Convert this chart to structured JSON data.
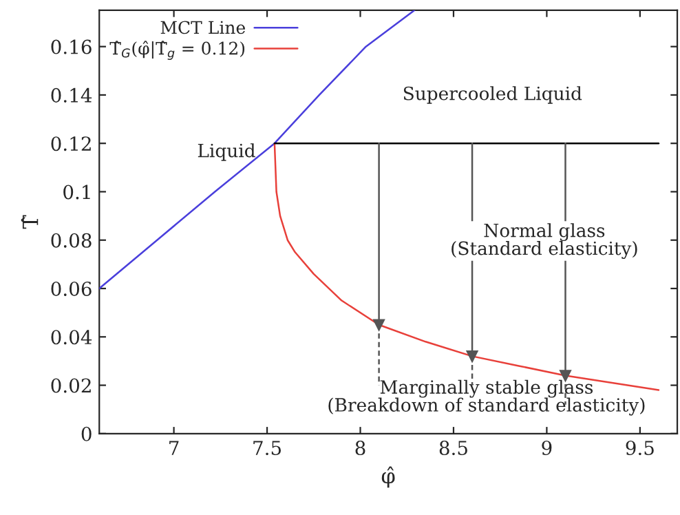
{
  "chart_data": {
    "type": "line",
    "xlabel": "φ̂",
    "ylabel": "T̂",
    "xlim": [
      6.6,
      9.7
    ],
    "ylim": [
      0,
      0.175
    ],
    "xticks": [
      7,
      7.5,
      8,
      8.5,
      9,
      9.5
    ],
    "yticks": [
      0,
      0.02,
      0.04,
      0.06,
      0.08,
      0.1,
      0.12,
      0.14,
      0.16
    ],
    "grid": false,
    "legend": "top left",
    "marker": "none",
    "series": [
      {
        "name": "MCT Line",
        "color": "#4a3fdc",
        "x": [
          6.6,
          6.91,
          7.22,
          7.54,
          7.78,
          8.03,
          8.29
        ],
        "values": [
          0.06,
          0.08,
          0.1,
          0.12,
          0.14,
          0.16,
          0.175
        ]
      },
      {
        "name": "T̂$_{G}$(φ̂|T̂$_{g}$ = 0.12)",
        "color": "#e8403a",
        "x": [
          7.54,
          7.55,
          7.57,
          7.61,
          7.65,
          7.75,
          7.9,
          8.1,
          8.35,
          8.6,
          8.85,
          9.1,
          9.35,
          9.6
        ],
        "values": [
          0.12,
          0.1,
          0.09,
          0.08,
          0.075,
          0.066,
          0.055,
          0.045,
          0.038,
          0.032,
          0.028,
          0.024,
          0.021,
          0.018
        ]
      },
      {
        "color": "#000000",
        "x": [
          7.54,
          9.6
        ],
        "values": [
          0.12,
          0.12
        ]
      },
      {
        "color": "#555555",
        "x": [
          8.1,
          8.1
        ],
        "values": [
          0.12,
          0.045
        ],
        "marker": "triangle"
      },
      {
        "color": "#555555",
        "x": [
          8.6,
          8.6
        ],
        "values": [
          0.12,
          0.032
        ],
        "marker": "triangle"
      },
      {
        "color": "#555555",
        "x": [
          9.1,
          9.1
        ],
        "values": [
          0.12,
          0.024
        ],
        "marker": "triangle"
      },
      {
        "color": "#555555",
        "x": [
          8.1,
          8.1
        ],
        "values": [
          0.045,
          0.02
        ],
        "line_style": "dashed"
      },
      {
        "color": "#555555",
        "x": [
          8.6,
          8.6
        ],
        "values": [
          0.032,
          0.02
        ],
        "line_style": "dashed"
      },
      {
        "color": "#555555",
        "x": [
          9.1,
          9.1
        ],
        "values": [
          0.024,
          0.012
        ],
        "line_style": "dashed"
      }
    ],
    "annotations": [
      "Liquid",
      "Supercooled Liquid",
      "Normal glass\n(Standard elasticity)",
      "Marginally stable glass\n(Breakdown of standard elasticity)"
    ]
  }
}
